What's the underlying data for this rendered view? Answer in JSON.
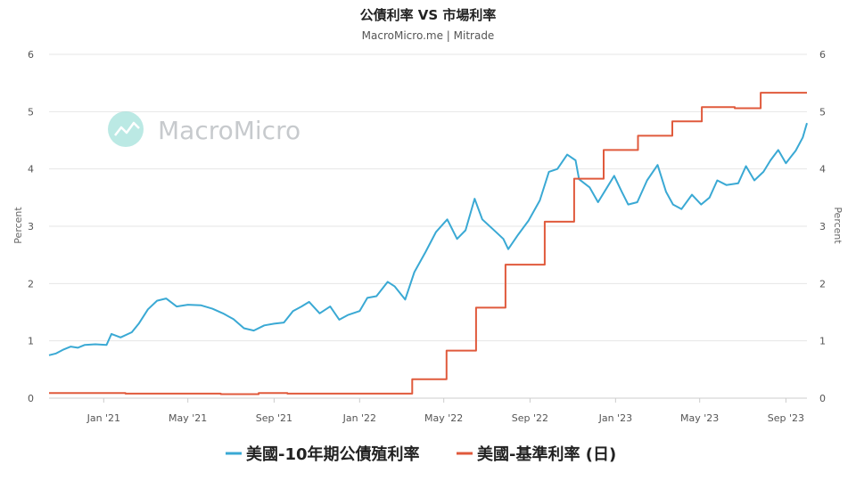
{
  "chart_data": {
    "type": "line",
    "title": "公債利率 VS 市場利率",
    "subtitle": "MacroMicro.me | Mitrade",
    "ylabel_left": "Percent",
    "ylabel_right": "Percent",
    "ylim": [
      0,
      6
    ],
    "yticks": [
      "0",
      "1",
      "2",
      "3",
      "4",
      "5",
      "6"
    ],
    "xlim": [
      "2020-10-15",
      "2023-10-01"
    ],
    "xticks": [
      {
        "date": "2021-01-01",
        "label": "Jan '21"
      },
      {
        "date": "2021-05-01",
        "label": "May '21"
      },
      {
        "date": "2021-09-01",
        "label": "Sep '21"
      },
      {
        "date": "2022-01-01",
        "label": "Jan '22"
      },
      {
        "date": "2022-05-01",
        "label": "May '22"
      },
      {
        "date": "2022-09-01",
        "label": "Sep '22"
      },
      {
        "date": "2023-01-01",
        "label": "Jan '23"
      },
      {
        "date": "2023-05-01",
        "label": "May '23"
      },
      {
        "date": "2023-09-01",
        "label": "Sep '23"
      }
    ],
    "grid": true,
    "legend_position": "bottom",
    "series": [
      {
        "name": "美國-10年期公債殖利率",
        "color": "#3aa9d4",
        "step": false,
        "points": [
          [
            "2020-10-15",
            0.75
          ],
          [
            "2020-10-25",
            0.78
          ],
          [
            "2020-11-05",
            0.85
          ],
          [
            "2020-11-15",
            0.9
          ],
          [
            "2020-11-25",
            0.88
          ],
          [
            "2020-12-05",
            0.93
          ],
          [
            "2020-12-20",
            0.94
          ],
          [
            "2021-01-05",
            0.93
          ],
          [
            "2021-01-12",
            1.12
          ],
          [
            "2021-01-25",
            1.06
          ],
          [
            "2021-02-10",
            1.15
          ],
          [
            "2021-02-20",
            1.3
          ],
          [
            "2021-03-05",
            1.55
          ],
          [
            "2021-03-18",
            1.7
          ],
          [
            "2021-03-31",
            1.74
          ],
          [
            "2021-04-15",
            1.6
          ],
          [
            "2021-05-01",
            1.63
          ],
          [
            "2021-05-20",
            1.62
          ],
          [
            "2021-06-05",
            1.56
          ],
          [
            "2021-06-20",
            1.48
          ],
          [
            "2021-07-05",
            1.38
          ],
          [
            "2021-07-20",
            1.22
          ],
          [
            "2021-08-03",
            1.18
          ],
          [
            "2021-08-18",
            1.27
          ],
          [
            "2021-09-01",
            1.3
          ],
          [
            "2021-09-15",
            1.32
          ],
          [
            "2021-09-28",
            1.52
          ],
          [
            "2021-10-10",
            1.6
          ],
          [
            "2021-10-21",
            1.68
          ],
          [
            "2021-11-05",
            1.48
          ],
          [
            "2021-11-20",
            1.6
          ],
          [
            "2021-12-03",
            1.37
          ],
          [
            "2021-12-15",
            1.45
          ],
          [
            "2022-01-01",
            1.52
          ],
          [
            "2022-01-12",
            1.75
          ],
          [
            "2022-01-25",
            1.78
          ],
          [
            "2022-02-10",
            2.03
          ],
          [
            "2022-02-20",
            1.95
          ],
          [
            "2022-03-07",
            1.72
          ],
          [
            "2022-03-20",
            2.2
          ],
          [
            "2022-04-05",
            2.55
          ],
          [
            "2022-04-20",
            2.9
          ],
          [
            "2022-05-06",
            3.12
          ],
          [
            "2022-05-20",
            2.78
          ],
          [
            "2022-06-01",
            2.93
          ],
          [
            "2022-06-14",
            3.48
          ],
          [
            "2022-06-25",
            3.12
          ],
          [
            "2022-07-10",
            2.95
          ],
          [
            "2022-07-25",
            2.78
          ],
          [
            "2022-08-01",
            2.6
          ],
          [
            "2022-08-15",
            2.85
          ],
          [
            "2022-08-30",
            3.1
          ],
          [
            "2022-09-15",
            3.45
          ],
          [
            "2022-09-28",
            3.95
          ],
          [
            "2022-10-10",
            4.0
          ],
          [
            "2022-10-24",
            4.25
          ],
          [
            "2022-11-05",
            4.15
          ],
          [
            "2022-11-10",
            3.82
          ],
          [
            "2022-11-25",
            3.68
          ],
          [
            "2022-12-07",
            3.42
          ],
          [
            "2022-12-20",
            3.68
          ],
          [
            "2022-12-30",
            3.88
          ],
          [
            "2023-01-10",
            3.6
          ],
          [
            "2023-01-19",
            3.38
          ],
          [
            "2023-02-01",
            3.42
          ],
          [
            "2023-02-15",
            3.8
          ],
          [
            "2023-03-02",
            4.07
          ],
          [
            "2023-03-14",
            3.6
          ],
          [
            "2023-03-24",
            3.38
          ],
          [
            "2023-04-05",
            3.3
          ],
          [
            "2023-04-20",
            3.55
          ],
          [
            "2023-05-03",
            3.38
          ],
          [
            "2023-05-15",
            3.5
          ],
          [
            "2023-05-26",
            3.8
          ],
          [
            "2023-06-08",
            3.72
          ],
          [
            "2023-06-25",
            3.75
          ],
          [
            "2023-07-06",
            4.05
          ],
          [
            "2023-07-18",
            3.8
          ],
          [
            "2023-07-31",
            3.95
          ],
          [
            "2023-08-10",
            4.15
          ],
          [
            "2023-08-21",
            4.33
          ],
          [
            "2023-09-01",
            4.1
          ],
          [
            "2023-09-15",
            4.32
          ],
          [
            "2023-09-25",
            4.55
          ],
          [
            "2023-10-01",
            4.8
          ]
        ]
      },
      {
        "name": "美國-基準利率 (日)",
        "color": "#e05a3c",
        "step": true,
        "points": [
          [
            "2020-10-15",
            0.09
          ],
          [
            "2021-01-01",
            0.09
          ],
          [
            "2021-02-01",
            0.08
          ],
          [
            "2021-06-17",
            0.07
          ],
          [
            "2021-08-10",
            0.09
          ],
          [
            "2021-09-20",
            0.08
          ],
          [
            "2022-03-17",
            0.33
          ],
          [
            "2022-05-05",
            0.83
          ],
          [
            "2022-06-16",
            1.58
          ],
          [
            "2022-07-28",
            2.33
          ],
          [
            "2022-09-22",
            3.08
          ],
          [
            "2022-11-03",
            3.83
          ],
          [
            "2022-12-15",
            4.33
          ],
          [
            "2023-02-02",
            4.58
          ],
          [
            "2023-03-23",
            4.83
          ],
          [
            "2023-05-04",
            5.08
          ],
          [
            "2023-06-20",
            5.06
          ],
          [
            "2023-07-27",
            5.33
          ],
          [
            "2023-10-01",
            5.33
          ]
        ]
      }
    ]
  },
  "watermark": {
    "text": "MacroMicro",
    "icon": "line-chart-icon",
    "color": "#9ee0d8"
  }
}
